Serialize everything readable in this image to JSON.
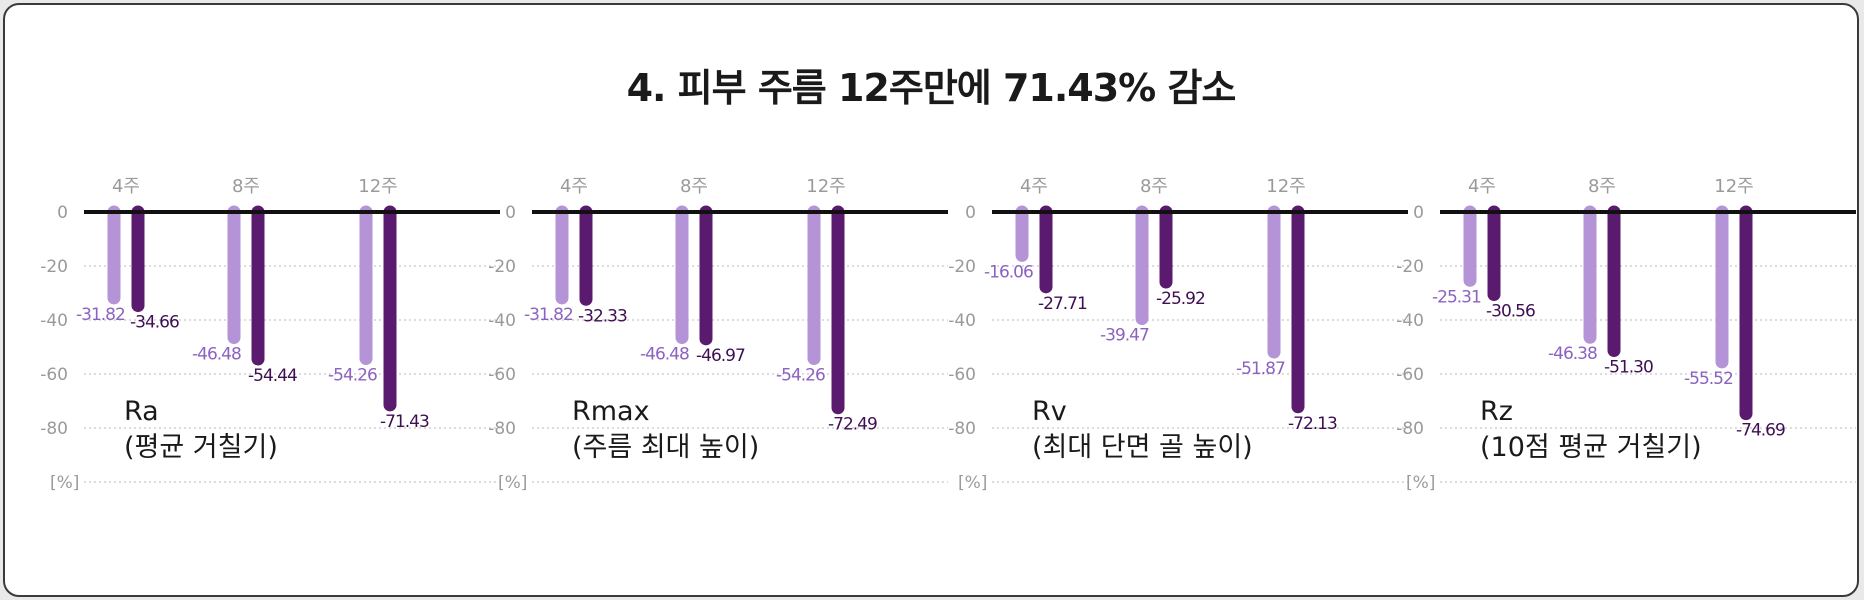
{
  "title": "4. 피부 주름  12주만에 71.43% 감소",
  "colors": {
    "light": "#b494d6",
    "dark": "#5a1a6e",
    "zero_line": "#111111",
    "grid": "#c8c8c8"
  },
  "unit_label": "[%]",
  "chart_data": [
    {
      "type": "bar",
      "metric": "Ra",
      "metric_desc": "(평균 거칠기)",
      "categories": [
        "4주",
        "8주",
        "12주"
      ],
      "series": [
        {
          "values": [
            -31.82,
            -46.48,
            -54.26
          ]
        },
        {
          "values": [
            -34.66,
            -54.44,
            -71.43
          ]
        }
      ],
      "value_labels": [
        [
          "-31.82",
          "-46.48",
          "-54.26"
        ],
        [
          "-34.66",
          "-54.44",
          "-71.43"
        ]
      ],
      "yticks": [
        "0",
        "-20",
        "-40",
        "-60",
        "-80"
      ],
      "ylim": [
        -100,
        0
      ],
      "grid": true
    },
    {
      "type": "bar",
      "metric": "Rmax",
      "metric_desc": "(주름 최대 높이)",
      "categories": [
        "4주",
        "8주",
        "12주"
      ],
      "series": [
        {
          "values": [
            -31.82,
            -46.48,
            -54.26
          ]
        },
        {
          "values": [
            -32.33,
            -46.97,
            -72.49
          ]
        }
      ],
      "value_labels": [
        [
          "-31.82",
          "-46.48",
          "-54.26"
        ],
        [
          "-32.33",
          "-46.97",
          "-72.49"
        ]
      ],
      "yticks": [
        "0",
        "-20",
        "-40",
        "-60",
        "-80"
      ],
      "ylim": [
        -100,
        0
      ],
      "grid": true
    },
    {
      "type": "bar",
      "metric": "Rv",
      "metric_desc": "(최대 단면 골 높이)",
      "categories": [
        "4주",
        "8주",
        "12주"
      ],
      "series": [
        {
          "values": [
            -16.06,
            -39.47,
            -51.87
          ]
        },
        {
          "values": [
            -27.71,
            -25.92,
            -72.13
          ]
        }
      ],
      "value_labels": [
        [
          "-16.06",
          "-39.47",
          "-51.87"
        ],
        [
          "-27.71",
          "-25.92",
          "-72.13"
        ]
      ],
      "yticks": [
        "0",
        "-20",
        "-40",
        "-60",
        "-80"
      ],
      "ylim": [
        -100,
        0
      ],
      "grid": true
    },
    {
      "type": "bar",
      "metric": "Rz",
      "metric_desc": "(10점 평균 거칠기)",
      "categories": [
        "4주",
        "8주",
        "12주"
      ],
      "series": [
        {
          "values": [
            -25.31,
            -46.38,
            -55.52
          ]
        },
        {
          "values": [
            -30.56,
            -51.3,
            -74.69
          ]
        }
      ],
      "value_labels": [
        [
          "-25.31",
          "-46.38",
          "-55.52"
        ],
        [
          "-30.56",
          "-51.30",
          "-74.69"
        ]
      ],
      "yticks": [
        "0",
        "-20",
        "-40",
        "-60",
        "-80"
      ],
      "ylim": [
        -100,
        0
      ],
      "grid": true
    }
  ]
}
